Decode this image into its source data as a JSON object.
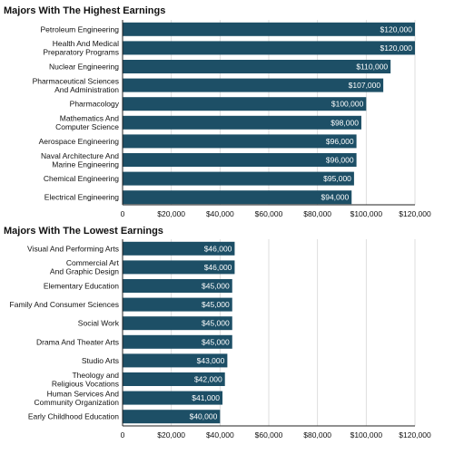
{
  "chart_data": [
    {
      "type": "bar",
      "orientation": "horizontal",
      "title": "Majors With The Highest Earnings",
      "categories": [
        "Petroleum Engineering",
        "Health And Medical\nPreparatory Programs",
        "Nuclear Engineering",
        "Pharmaceutical Sciences\nAnd Administration",
        "Pharmacology",
        "Mathematics And\nComputer Science",
        "Aerospace Engineering",
        "Naval Architecture And\nMarine Engineering",
        "Chemical Engineering",
        "Electrical Engineering"
      ],
      "values": [
        120000,
        120000,
        110000,
        107000,
        100000,
        98000,
        96000,
        96000,
        95000,
        94000
      ],
      "value_labels": [
        "$120,000",
        "$120,000",
        "$110,000",
        "$107,000",
        "$100,000",
        "$98,000",
        "$96,000",
        "$96,000",
        "$95,000",
        "$94,000"
      ],
      "xticks": [
        0,
        20000,
        40000,
        60000,
        80000,
        100000,
        120000
      ],
      "xtick_labels": [
        "0",
        "$20,000",
        "$40,000",
        "$60,000",
        "$80,000",
        "$100,000",
        "$120,000"
      ],
      "xlim": [
        0,
        120000
      ],
      "grid": true,
      "bar_color": "#1d4f66"
    },
    {
      "type": "bar",
      "orientation": "horizontal",
      "title": "Majors With The Lowest Earnings",
      "categories": [
        "Visual And Performing Arts",
        "Commercial Art\nAnd Graphic Design",
        "Elementary Education",
        "Family And Consumer Sciences",
        "Social Work",
        "Drama And Theater Arts",
        "Studio Arts",
        "Theology and\nReligious Vocations",
        "Human Services And\nCommunity Organization",
        "Early Childhood Education"
      ],
      "values": [
        46000,
        46000,
        45000,
        45000,
        45000,
        45000,
        43000,
        42000,
        41000,
        40000
      ],
      "value_labels": [
        "$46,000",
        "$46,000",
        "$45,000",
        "$45,000",
        "$45,000",
        "$45,000",
        "$43,000",
        "$42,000",
        "$41,000",
        "$40,000"
      ],
      "xticks": [
        0,
        20000,
        40000,
        60000,
        80000,
        100000,
        120000
      ],
      "xtick_labels": [
        "0",
        "$20,000",
        "$40,000",
        "$60,000",
        "$80,000",
        "$100,000",
        "$120,000"
      ],
      "xlim": [
        0,
        120000
      ],
      "grid": true,
      "bar_color": "#1d4f66"
    }
  ]
}
